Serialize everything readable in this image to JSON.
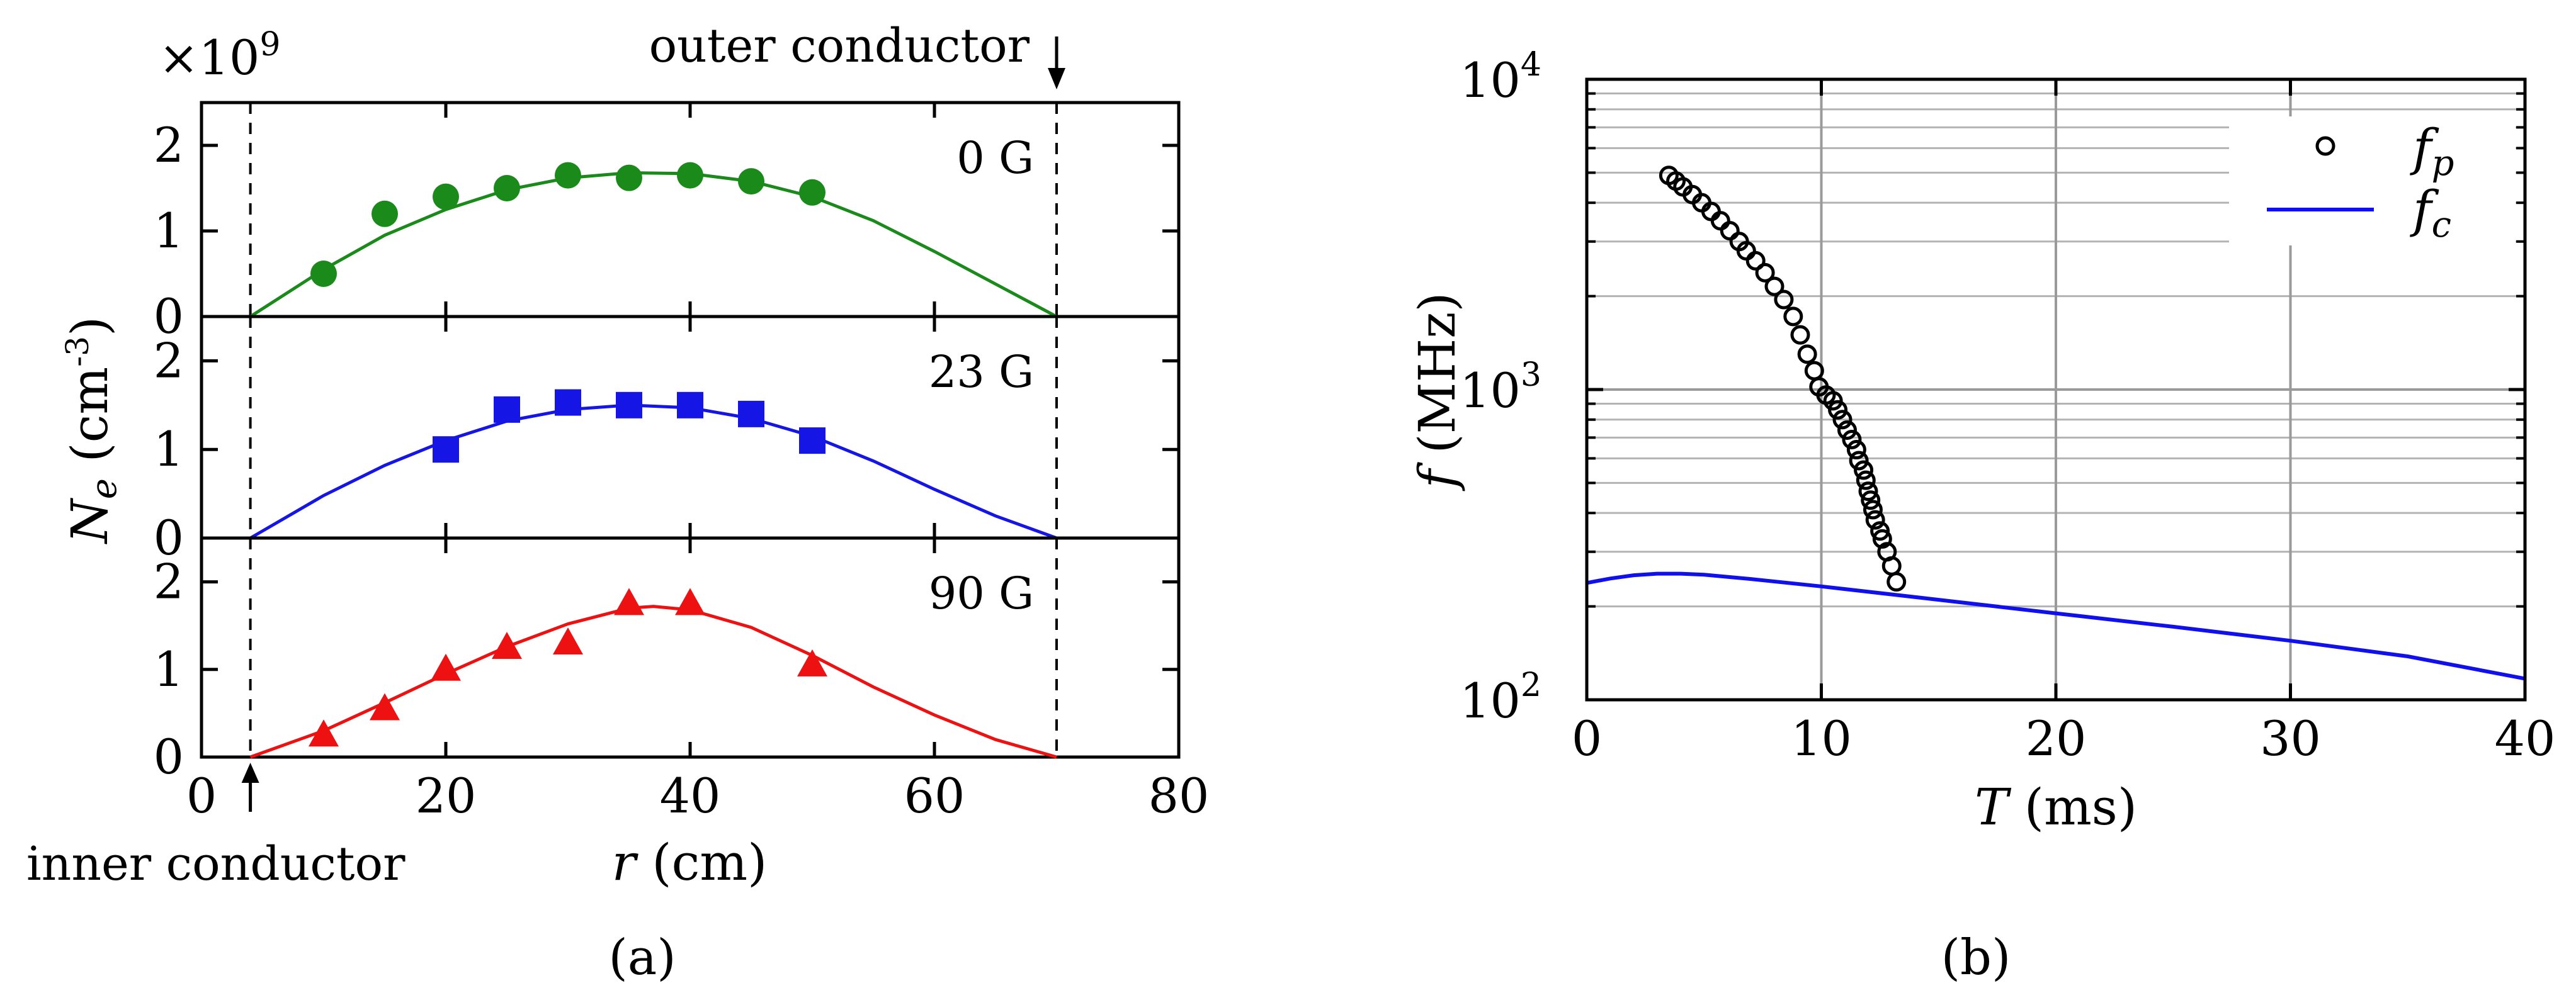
{
  "figure": {
    "panel_a_label": "(a)",
    "panel_b_label": "(b)"
  },
  "chart_data": [
    {
      "id": "a",
      "type": "scatter",
      "title": "",
      "xlabel": "r (cm)",
      "ylabel": "N_e (cm^-3)",
      "ylabel_base": "N",
      "ylabel_sub": "e",
      "ylabel_unit": " (cm",
      "ylabel_exp": "-3",
      "ylabel_close": ")",
      "xlabel_var": "r",
      "xlabel_unit": " (cm)",
      "y_multiplier": "×10",
      "y_multiplier_exp": "9",
      "xlim": [
        0,
        80
      ],
      "x_ticks": [
        0,
        20,
        40,
        60,
        80
      ],
      "x_tick_labels": [
        "0",
        "20",
        "40",
        "60",
        "80"
      ],
      "ylim": [
        0,
        2.5
      ],
      "y_ticks": [
        0,
        1,
        2
      ],
      "y_tick_labels": [
        "0",
        "1",
        "2"
      ],
      "annotations": {
        "inner_conductor": {
          "text": "inner conductor",
          "x": 4
        },
        "outer_conductor": {
          "text": "outer conductor",
          "x": 70
        }
      },
      "series": [
        {
          "name": "0 G",
          "label": "0 G",
          "color": "#1a8a1a",
          "marker": "circle",
          "points_x": [
            10,
            15,
            20,
            25,
            30,
            35,
            40,
            45,
            50
          ],
          "points_y": [
            0.5,
            1.2,
            1.4,
            1.5,
            1.65,
            1.62,
            1.65,
            1.58,
            1.45
          ],
          "fit_x": [
            4,
            10,
            15,
            20,
            25,
            30,
            35,
            40,
            45,
            50,
            55,
            60,
            65,
            70
          ],
          "fit_y": [
            0,
            0.55,
            0.95,
            1.25,
            1.48,
            1.62,
            1.68,
            1.67,
            1.58,
            1.4,
            1.12,
            0.76,
            0.38,
            0
          ]
        },
        {
          "name": "23 G",
          "label": "23 G",
          "color": "#1515e6",
          "marker": "square",
          "points_x": [
            20,
            25,
            30,
            35,
            40,
            45,
            50
          ],
          "points_y": [
            1.0,
            1.45,
            1.53,
            1.5,
            1.5,
            1.4,
            1.1
          ],
          "fit_x": [
            4,
            10,
            15,
            20,
            25,
            30,
            35,
            40,
            45,
            50,
            55,
            60,
            65,
            70
          ],
          "fit_y": [
            0,
            0.48,
            0.82,
            1.1,
            1.32,
            1.45,
            1.5,
            1.47,
            1.35,
            1.15,
            0.87,
            0.55,
            0.25,
            0
          ]
        },
        {
          "name": "90 G",
          "label": "90 G",
          "color": "#ee1111",
          "marker": "triangle",
          "points_x": [
            10,
            15,
            20,
            25,
            30,
            35,
            40,
            50
          ],
          "points_y": [
            0.25,
            0.55,
            1.0,
            1.25,
            1.3,
            1.75,
            1.75,
            1.05
          ],
          "fit_x": [
            4,
            10,
            15,
            20,
            25,
            30,
            35,
            37,
            40,
            45,
            50,
            55,
            60,
            65,
            70
          ],
          "fit_y": [
            0,
            0.3,
            0.62,
            0.95,
            1.26,
            1.52,
            1.7,
            1.72,
            1.68,
            1.48,
            1.16,
            0.8,
            0.48,
            0.2,
            0
          ]
        }
      ]
    },
    {
      "id": "b",
      "type": "scatter",
      "title": "",
      "xlabel": "T (ms)",
      "xlabel_var": "T",
      "xlabel_unit": " (ms)",
      "ylabel": "f (MHz)",
      "ylabel_var": "f",
      "ylabel_unit": " (MHz)",
      "xlim": [
        0,
        40
      ],
      "x_ticks": [
        0,
        10,
        20,
        30,
        40
      ],
      "x_tick_labels": [
        "0",
        "10",
        "20",
        "30",
        "40"
      ],
      "yscale": "log",
      "ylim": [
        100,
        10000
      ],
      "y_ticks": [
        100,
        1000,
        10000
      ],
      "y_tick_labels_base": [
        "10",
        "10",
        "10"
      ],
      "y_tick_labels_exp": [
        "2",
        "3",
        "4"
      ],
      "grid": true,
      "legend": "top-right",
      "series": [
        {
          "name": "f_p",
          "label_base": "f",
          "label_sub": "p",
          "color": "#000000",
          "marker": "open-circle",
          "x": [
            3.5,
            3.8,
            4.1,
            4.5,
            4.9,
            5.3,
            5.7,
            6.1,
            6.5,
            6.8,
            7.2,
            7.6,
            8.0,
            8.4,
            8.8,
            9.1,
            9.4,
            9.7,
            9.9,
            10.2,
            10.5,
            10.7,
            10.9,
            11.1,
            11.3,
            11.5,
            11.6,
            11.8,
            11.9,
            12.0,
            12.1,
            12.2,
            12.3,
            12.5,
            12.6,
            12.8,
            13.0,
            13.2
          ],
          "y": [
            4900,
            4700,
            4500,
            4250,
            4000,
            3750,
            3500,
            3250,
            3000,
            2800,
            2600,
            2380,
            2150,
            1950,
            1720,
            1500,
            1300,
            1150,
            1020,
            960,
            920,
            860,
            800,
            740,
            690,
            640,
            590,
            550,
            510,
            470,
            440,
            410,
            380,
            350,
            330,
            300,
            270,
            240
          ]
        },
        {
          "name": "f_c",
          "label_base": "f",
          "label_sub": "c",
          "color": "#1010ee",
          "marker": "line",
          "x": [
            0,
            1,
            2,
            3,
            4,
            5,
            7,
            10,
            15,
            20,
            25,
            30,
            35,
            40
          ],
          "y": [
            238,
            246,
            252,
            255,
            255,
            253,
            245,
            232,
            210,
            190,
            172,
            155,
            138,
            117
          ]
        }
      ]
    }
  ]
}
